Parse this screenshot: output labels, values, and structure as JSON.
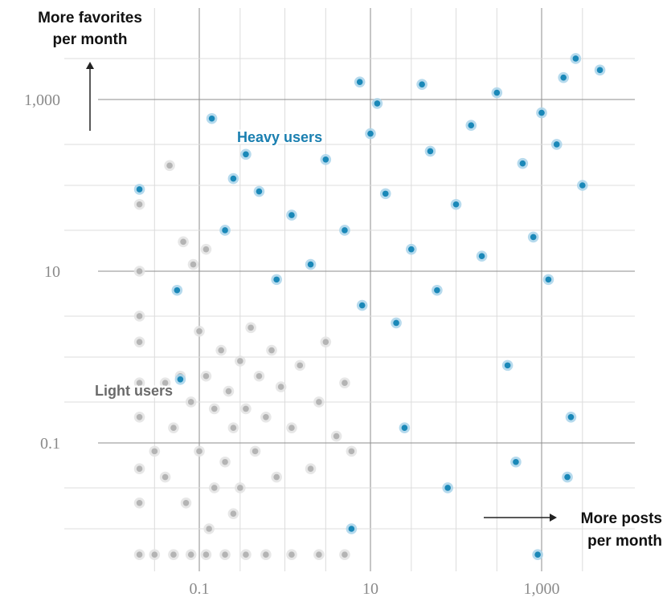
{
  "chart_data": {
    "type": "scatter",
    "title": "",
    "xscale": "log",
    "yscale": "log",
    "xlim": [
      0.02,
      6000
    ],
    "ylim": [
      0.004,
      8000
    ],
    "grid": true,
    "x_ticks": [
      {
        "value": 0.1,
        "label": "0.1"
      },
      {
        "value": 10,
        "label": "10"
      },
      {
        "value": 1000,
        "label": "1,000"
      }
    ],
    "y_ticks": [
      {
        "value": 0.1,
        "label": "0.1"
      },
      {
        "value": 10,
        "label": "10"
      },
      {
        "value": 1000,
        "label": "1,000"
      }
    ],
    "x_axis_title": [
      "More posts",
      "per month"
    ],
    "y_axis_title": [
      "More favorites",
      "per month"
    ],
    "colors": {
      "heavy_fill": "#1a88b8",
      "heavy_halo": "#a9d4ea",
      "light_fill": "#b4b4b4",
      "light_halo": "#e3e3e3",
      "grid_major": "#8e8e8e",
      "grid_minor": "#dcdcdc",
      "axis_title": "#111111"
    },
    "series": [
      {
        "name": "Light users",
        "label_color": "#6b6b6b",
        "points": [
          [
            0.02,
            0.005
          ],
          [
            0.03,
            0.005
          ],
          [
            0.05,
            0.005
          ],
          [
            0.08,
            0.005
          ],
          [
            0.12,
            0.005
          ],
          [
            0.2,
            0.005
          ],
          [
            0.35,
            0.005
          ],
          [
            0.6,
            0.005
          ],
          [
            1.2,
            0.005
          ],
          [
            2.5,
            0.005
          ],
          [
            5,
            0.005
          ],
          [
            0.02,
            0.02
          ],
          [
            0.02,
            0.05
          ],
          [
            0.02,
            0.2
          ],
          [
            0.02,
            0.5
          ],
          [
            0.02,
            1.5
          ],
          [
            0.02,
            3
          ],
          [
            0.02,
            10
          ],
          [
            0.02,
            60
          ],
          [
            0.045,
            170
          ],
          [
            0.065,
            22
          ],
          [
            0.085,
            12
          ],
          [
            0.12,
            18
          ],
          [
            0.04,
            0.04
          ],
          [
            0.05,
            0.15
          ],
          [
            0.07,
            0.02
          ],
          [
            0.06,
            0.6
          ],
          [
            0.08,
            0.3
          ],
          [
            0.1,
            0.08
          ],
          [
            0.1,
            2
          ],
          [
            0.12,
            0.6
          ],
          [
            0.15,
            0.03
          ],
          [
            0.15,
            0.25
          ],
          [
            0.18,
            1.2
          ],
          [
            0.2,
            0.06
          ],
          [
            0.22,
            0.4
          ],
          [
            0.25,
            0.15
          ],
          [
            0.3,
            0.9
          ],
          [
            0.3,
            0.03
          ],
          [
            0.35,
            0.25
          ],
          [
            0.4,
            2.2
          ],
          [
            0.45,
            0.08
          ],
          [
            0.5,
            0.6
          ],
          [
            0.6,
            0.2
          ],
          [
            0.7,
            1.2
          ],
          [
            0.8,
            0.04
          ],
          [
            0.9,
            0.45
          ],
          [
            1.2,
            0.15
          ],
          [
            1.5,
            0.8
          ],
          [
            2,
            0.05
          ],
          [
            2.5,
            0.3
          ],
          [
            3,
            1.5
          ],
          [
            4,
            0.12
          ],
          [
            5,
            0.5
          ],
          [
            6,
            0.08
          ],
          [
            0.03,
            0.08
          ],
          [
            0.04,
            0.5
          ],
          [
            0.13,
            0.01
          ],
          [
            0.25,
            0.015
          ]
        ]
      },
      {
        "name": "Heavy users",
        "label_color": "#1a7fb0",
        "points": [
          [
            0.02,
            90
          ],
          [
            0.055,
            6
          ],
          [
            0.06,
            0.55
          ],
          [
            0.14,
            600
          ],
          [
            0.2,
            30
          ],
          [
            0.25,
            120
          ],
          [
            0.35,
            230
          ],
          [
            0.5,
            85
          ],
          [
            0.8,
            8
          ],
          [
            1.2,
            45
          ],
          [
            2,
            12
          ],
          [
            3,
            200
          ],
          [
            5,
            30
          ],
          [
            6,
            0.01
          ],
          [
            7.5,
            1600
          ],
          [
            8,
            4
          ],
          [
            10,
            400
          ],
          [
            12,
            900
          ],
          [
            15,
            80
          ],
          [
            20,
            2.5
          ],
          [
            25,
            0.15
          ],
          [
            30,
            18
          ],
          [
            40,
            1500
          ],
          [
            50,
            250
          ],
          [
            60,
            6
          ],
          [
            80,
            0.03
          ],
          [
            100,
            60
          ],
          [
            150,
            500
          ],
          [
            200,
            15
          ],
          [
            300,
            1200
          ],
          [
            400,
            0.8
          ],
          [
            500,
            0.06
          ],
          [
            600,
            180
          ],
          [
            800,
            25
          ],
          [
            900,
            0.005
          ],
          [
            1000,
            700
          ],
          [
            1200,
            8
          ],
          [
            1500,
            300
          ],
          [
            1800,
            1800
          ],
          [
            2200,
            0.2
          ],
          [
            2500,
            3000
          ],
          [
            2000,
            0.04
          ],
          [
            4800,
            2200
          ],
          [
            3000,
            100
          ]
        ]
      }
    ]
  }
}
